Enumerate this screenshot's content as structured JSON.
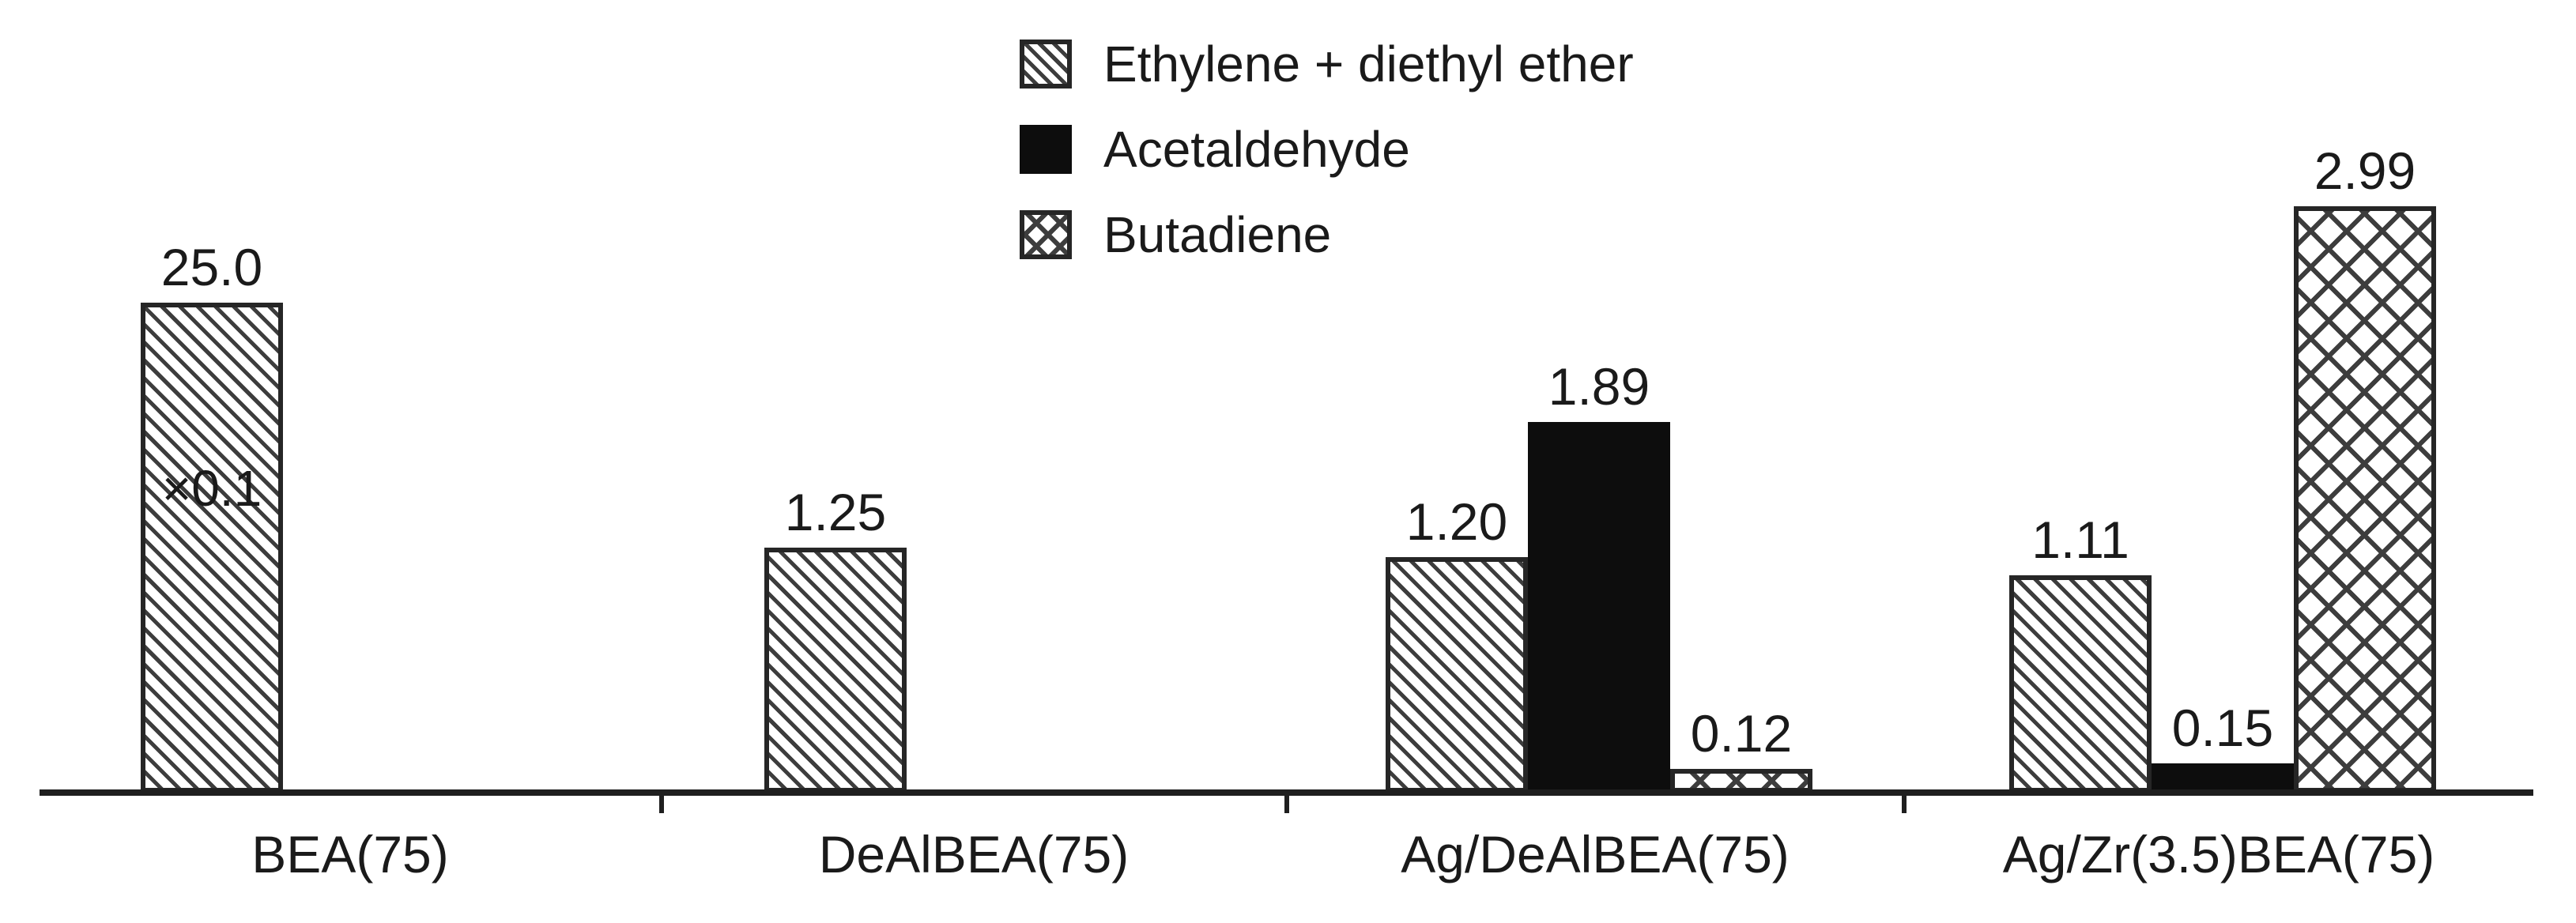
{
  "legend": {
    "items": [
      {
        "label": "Ethylene + diethyl ether",
        "pattern": "diagonal-hatch"
      },
      {
        "label": "Acetaldehyde",
        "pattern": "solid"
      },
      {
        "label": "Butadiene",
        "pattern": "cross-hatch"
      }
    ]
  },
  "chart_data": {
    "type": "bar",
    "title": "",
    "xlabel": "",
    "ylabel": "",
    "categories": [
      "BEA(75)",
      "DeAlBEA(75)",
      "Ag/DeAlBEA(75)",
      "Ag/Zr(3.5)BEA(75)"
    ],
    "series": [
      {
        "name": "Ethylene + diethyl ether",
        "pattern": "diagonal-hatch",
        "values": [
          25.0,
          1.25,
          1.2,
          1.11
        ],
        "display_values": [
          2.5,
          1.25,
          1.2,
          1.11
        ],
        "labels": [
          "25.0",
          "1.25",
          "1.20",
          "1.11"
        ]
      },
      {
        "name": "Acetaldehyde",
        "pattern": "solid",
        "values": [
          null,
          null,
          1.89,
          0.15
        ],
        "display_values": [
          null,
          null,
          1.89,
          0.15
        ],
        "labels": [
          null,
          null,
          "1.89",
          "0.15"
        ]
      },
      {
        "name": "Butadiene",
        "pattern": "cross-hatch",
        "values": [
          null,
          null,
          0.12,
          2.99
        ],
        "display_values": [
          null,
          null,
          0.12,
          2.99
        ],
        "labels": [
          null,
          null,
          "0.12",
          "2.99"
        ]
      }
    ],
    "annotations": [
      {
        "text": "×0.1",
        "category_index": 0,
        "series_index": 0
      }
    ],
    "ylim": [
      0,
      3.3
    ],
    "grid": false,
    "y_axis_shown": false,
    "legend_position": "top-center"
  }
}
